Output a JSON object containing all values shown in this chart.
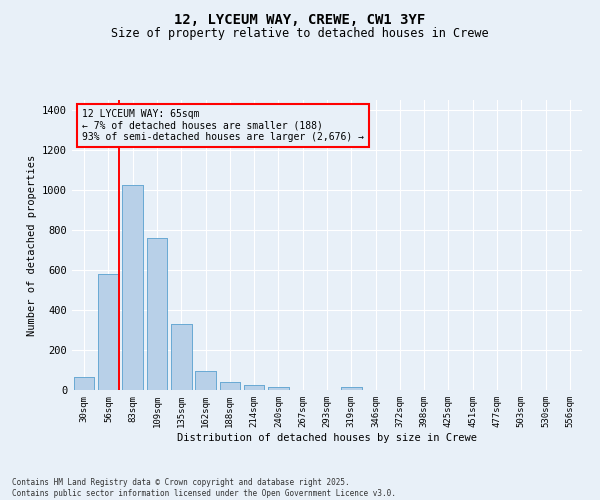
{
  "title1": "12, LYCEUM WAY, CREWE, CW1 3YF",
  "title2": "Size of property relative to detached houses in Crewe",
  "xlabel": "Distribution of detached houses by size in Crewe",
  "ylabel": "Number of detached properties",
  "categories": [
    "30sqm",
    "56sqm",
    "83sqm",
    "109sqm",
    "135sqm",
    "162sqm",
    "188sqm",
    "214sqm",
    "240sqm",
    "267sqm",
    "293sqm",
    "319sqm",
    "346sqm",
    "372sqm",
    "398sqm",
    "425sqm",
    "451sqm",
    "477sqm",
    "503sqm",
    "530sqm",
    "556sqm"
  ],
  "values": [
    65,
    580,
    1025,
    760,
    330,
    95,
    40,
    25,
    15,
    0,
    0,
    15,
    0,
    0,
    0,
    0,
    0,
    0,
    0,
    0,
    0
  ],
  "bar_color": "#b8d0e8",
  "bar_edge_color": "#6aaad4",
  "red_line_index": 1,
  "annotation_title": "12 LYCEUM WAY: 65sqm",
  "annotation_line1": "← 7% of detached houses are smaller (188)",
  "annotation_line2": "93% of semi-detached houses are larger (2,676) →",
  "ylim": [
    0,
    1450
  ],
  "yticks": [
    0,
    200,
    400,
    600,
    800,
    1000,
    1200,
    1400
  ],
  "bg_color": "#e8f0f8",
  "grid_color": "#ffffff",
  "footer1": "Contains HM Land Registry data © Crown copyright and database right 2025.",
  "footer2": "Contains public sector information licensed under the Open Government Licence v3.0."
}
